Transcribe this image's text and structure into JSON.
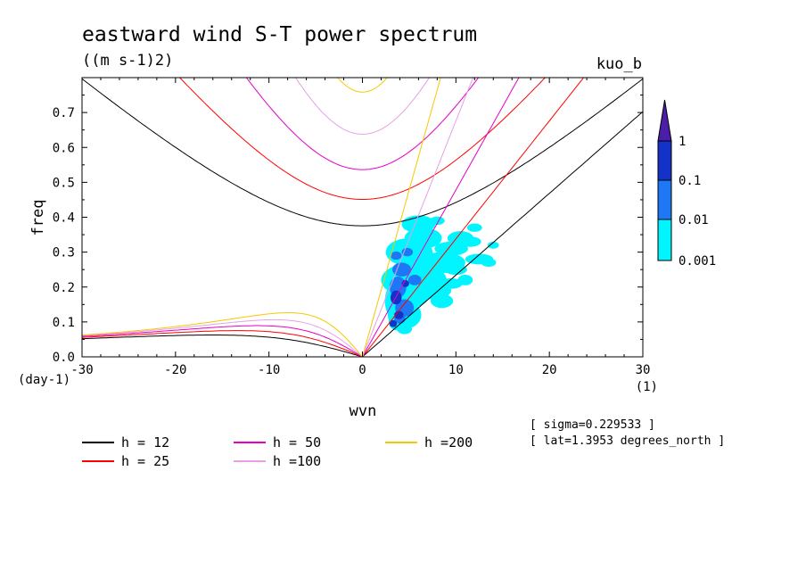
{
  "chart_data": {
    "type": "contour",
    "title": "eastward wind S-T power spectrum",
    "units": "((m s-1)2)",
    "model_label": "kuo_b",
    "xlabel": "wvn",
    "ylabel": "freq",
    "x_unit": "(1)",
    "y_unit": "(day-1)",
    "xlim": [
      -30,
      30
    ],
    "ylim": [
      0,
      0.8
    ],
    "x_ticks": [
      -30,
      -20,
      -10,
      0,
      10,
      20,
      30
    ],
    "x_tick_labels": [
      "-30",
      "-20",
      "-10",
      "0",
      "10",
      "20",
      "30"
    ],
    "y_ticks": [
      0,
      0.1,
      0.2,
      0.3,
      0.4,
      0.5,
      0.6,
      0.7
    ],
    "y_tick_labels": [
      "0.0",
      "0.1",
      "0.2",
      "0.3",
      "0.4",
      "0.5",
      "0.6",
      "0.7"
    ],
    "notes": [
      "[ sigma=0.229533 ]",
      "[ lat=1.3953 degrees_north ]"
    ],
    "colorbar": {
      "levels": [
        "0.001",
        "0.01",
        "0.1",
        "1"
      ],
      "colors": [
        "#00f5ff",
        "#1e78f5",
        "#1432c8",
        "#4b1eaa"
      ]
    },
    "dispersion_curves": [
      {
        "label": "h = 12",
        "h": 12,
        "color": "#000000",
        "ig_min_freq": 0.37,
        "rossby_peak_freq": 0.063,
        "kelvin_freq_at_30": 0.7
      },
      {
        "label": "h = 25",
        "h": 25,
        "color": "#ff0000",
        "ig_min_freq": 0.445,
        "rossby_peak_freq": 0.076,
        "kelvin_freq_at_18": 0.8
      },
      {
        "label": "h = 50",
        "h": 50,
        "color": "#e600c8",
        "ig_min_freq": 0.525,
        "rossby_peak_freq": 0.09,
        "kelvin_freq_at_12": 0.8
      },
      {
        "label": "h =100",
        "h": 100,
        "color": "#e6a0e6",
        "ig_min_freq": 0.63,
        "rossby_peak_freq": 0.107,
        "kelvin_freq_at_9": 0.8
      },
      {
        "label": "h =200",
        "h": 200,
        "color": "#f5c800",
        "ig_min_freq": 0.745,
        "rossby_peak_freq": 0.127,
        "kelvin_freq_at_7": 0.8
      }
    ],
    "contour_regions": [
      {
        "level": "0.001",
        "color": "#00f5ff",
        "wvn_range": [
          2,
          14
        ],
        "freq_range": [
          0.07,
          0.4
        ]
      },
      {
        "level": "0.01",
        "color": "#1e78f5",
        "wvn_range": [
          2.2,
          6
        ],
        "freq_range": [
          0.09,
          0.3
        ]
      },
      {
        "level": "0.1",
        "color": "#1432c8",
        "wvn_range": [
          2.5,
          5
        ],
        "freq_range": [
          0.08,
          0.22
        ]
      }
    ]
  }
}
